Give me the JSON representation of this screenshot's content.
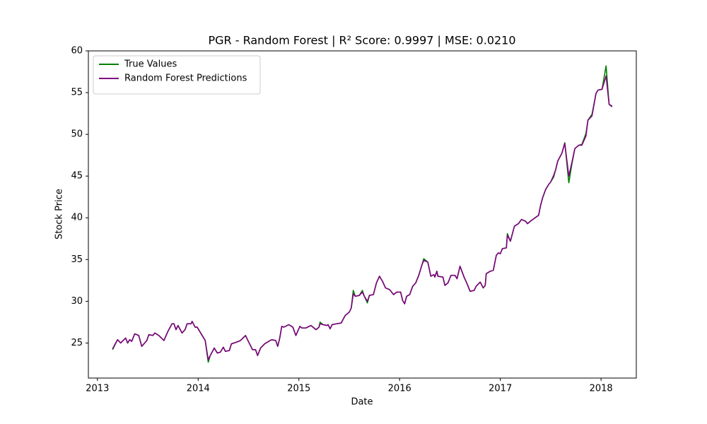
{
  "chart_data": {
    "type": "line",
    "title": "PGR - Random Forest | R² Score: 0.9997 | MSE: 0.0210",
    "xlabel": "Date",
    "ylabel": "Stock Price",
    "xlim": [
      2012.91,
      2018.35
    ],
    "xticks": [
      2013,
      2014,
      2015,
      2016,
      2017,
      2018
    ],
    "ylim": [
      20.8,
      60
    ],
    "yticks": [
      25,
      30,
      35,
      40,
      45,
      50,
      55,
      60
    ],
    "grid": false,
    "legend": "upper left",
    "x": [
      2013.15,
      2013.2,
      2013.23,
      2013.28,
      2013.3,
      2013.32,
      2013.34,
      2013.37,
      2013.41,
      2013.44,
      2013.49,
      2013.51,
      2013.55,
      2013.57,
      2013.61,
      2013.66,
      2013.7,
      2013.74,
      2013.76,
      2013.78,
      2013.8,
      2013.84,
      2013.87,
      2013.89,
      2013.93,
      2013.94,
      2013.97,
      2013.99,
      2014.02,
      2014.07,
      2014.1,
      2014.12,
      2014.16,
      2014.19,
      2014.22,
      2014.25,
      2014.27,
      2014.31,
      2014.33,
      2014.38,
      2014.42,
      2014.47,
      2014.49,
      2014.54,
      2014.57,
      2014.59,
      2014.62,
      2014.66,
      2014.7,
      2014.73,
      2014.77,
      2014.79,
      2014.81,
      2014.83,
      2014.85,
      2014.9,
      2014.94,
      2014.97,
      2015.01,
      2015.03,
      2015.07,
      2015.12,
      2015.17,
      2015.2,
      2015.21,
      2015.24,
      2015.28,
      2015.29,
      2015.31,
      2015.33,
      2015.37,
      2015.42,
      2015.46,
      2015.5,
      2015.52,
      2015.54,
      2015.56,
      2015.6,
      2015.63,
      2015.65,
      2015.68,
      2015.7,
      2015.74,
      2015.77,
      2015.8,
      2015.83,
      2015.86,
      2015.9,
      2015.94,
      2015.97,
      2016.01,
      2016.03,
      2016.05,
      2016.07,
      2016.1,
      2016.13,
      2016.16,
      2016.19,
      2016.22,
      2016.24,
      2016.28,
      2016.31,
      2016.34,
      2016.35,
      2016.37,
      2016.38,
      2016.43,
      2016.45,
      2016.48,
      2016.51,
      2016.55,
      2016.57,
      2016.6,
      2016.64,
      2016.67,
      2016.7,
      2016.74,
      2016.76,
      2016.8,
      2016.83,
      2016.85,
      2016.86,
      2016.9,
      2016.93,
      2016.96,
      2016.98,
      2017.0,
      2017.02,
      2017.06,
      2017.07,
      2017.1,
      2017.14,
      2017.18,
      2017.21,
      2017.25,
      2017.27,
      2017.31,
      2017.38,
      2017.4,
      2017.42,
      2017.45,
      2017.48,
      2017.5,
      2017.53,
      2017.55,
      2017.57,
      2017.61,
      2017.64,
      2017.68,
      2017.71,
      2017.74,
      2017.78,
      2017.81,
      2017.85,
      2017.87,
      2017.91,
      2017.95,
      2017.97,
      2018.01,
      2018.05,
      2018.08,
      2018.11
    ],
    "series": [
      {
        "name": "True Values",
        "color": "#008000",
        "values": [
          24.2,
          25.4,
          25.0,
          25.6,
          25.0,
          25.4,
          25.2,
          26.1,
          25.9,
          24.6,
          25.3,
          26.0,
          25.9,
          26.2,
          25.9,
          25.3,
          26.4,
          27.3,
          27.3,
          26.6,
          27.1,
          26.2,
          26.6,
          27.3,
          27.3,
          27.6,
          26.9,
          26.9,
          26.3,
          25.3,
          22.7,
          23.5,
          24.4,
          23.8,
          23.9,
          24.5,
          24.0,
          24.1,
          24.9,
          25.1,
          25.3,
          25.9,
          25.4,
          24.2,
          24.2,
          23.5,
          24.4,
          24.9,
          25.2,
          25.4,
          25.3,
          24.6,
          25.6,
          27.0,
          26.9,
          27.2,
          26.9,
          25.9,
          27.0,
          26.8,
          26.8,
          27.1,
          26.6,
          26.9,
          27.5,
          27.2,
          27.1,
          27.2,
          26.7,
          27.2,
          27.3,
          27.4,
          28.3,
          28.7,
          29.2,
          31.3,
          30.6,
          30.7,
          31.3,
          30.6,
          29.8,
          30.7,
          30.8,
          32.2,
          33.0,
          32.4,
          31.6,
          31.4,
          30.8,
          31.1,
          31.1,
          30.1,
          29.7,
          30.6,
          30.8,
          31.8,
          32.2,
          33.1,
          34.3,
          35.1,
          34.7,
          33.0,
          33.2,
          32.9,
          33.6,
          33.0,
          32.9,
          31.9,
          32.2,
          33.1,
          33.1,
          32.7,
          34.2,
          32.9,
          32.1,
          31.2,
          31.3,
          31.8,
          32.3,
          31.6,
          31.9,
          33.3,
          33.6,
          33.7,
          35.5,
          35.8,
          35.7,
          36.3,
          36.4,
          38.1,
          37.2,
          39.0,
          39.3,
          39.8,
          39.6,
          39.3,
          39.7,
          40.3,
          41.5,
          42.4,
          43.4,
          44.0,
          44.3,
          44.9,
          45.8,
          46.8,
          47.7,
          49.0,
          44.2,
          46.4,
          48.3,
          48.7,
          48.8,
          50.1,
          51.7,
          52.4,
          54.9,
          55.3,
          55.4,
          58.2,
          53.6,
          53.4
        ]
      },
      {
        "name": "Random Forest Predictions",
        "color": "#800080",
        "values": [
          24.3,
          25.4,
          25.0,
          25.6,
          25.0,
          25.4,
          25.2,
          26.1,
          25.9,
          24.6,
          25.3,
          26.0,
          25.9,
          26.2,
          25.9,
          25.3,
          26.4,
          27.3,
          27.3,
          26.6,
          27.1,
          26.2,
          26.6,
          27.3,
          27.3,
          27.6,
          26.9,
          26.9,
          26.3,
          25.3,
          23.0,
          23.5,
          24.4,
          23.8,
          23.9,
          24.5,
          24.0,
          24.1,
          24.9,
          25.1,
          25.3,
          25.9,
          25.4,
          24.2,
          24.2,
          23.5,
          24.4,
          24.9,
          25.2,
          25.4,
          25.3,
          24.6,
          25.6,
          27.0,
          26.9,
          27.2,
          26.9,
          25.9,
          27.0,
          26.8,
          26.8,
          27.1,
          26.6,
          26.9,
          27.3,
          27.2,
          27.1,
          27.2,
          26.7,
          27.2,
          27.3,
          27.4,
          28.3,
          28.7,
          29.2,
          30.9,
          30.6,
          30.7,
          31.1,
          30.6,
          30.0,
          30.7,
          30.8,
          32.2,
          33.0,
          32.4,
          31.6,
          31.4,
          30.8,
          31.1,
          31.1,
          30.1,
          29.7,
          30.6,
          30.8,
          31.8,
          32.2,
          33.1,
          34.3,
          34.9,
          34.7,
          33.0,
          33.2,
          32.9,
          33.6,
          33.0,
          32.9,
          31.9,
          32.2,
          33.1,
          33.1,
          32.7,
          34.2,
          32.9,
          32.1,
          31.2,
          31.3,
          31.8,
          32.3,
          31.6,
          31.9,
          33.3,
          33.6,
          33.7,
          35.5,
          35.8,
          35.7,
          36.3,
          36.4,
          37.9,
          37.2,
          39.0,
          39.3,
          39.8,
          39.6,
          39.3,
          39.7,
          40.3,
          41.5,
          42.4,
          43.4,
          44.0,
          44.3,
          45.1,
          45.8,
          46.8,
          47.7,
          48.9,
          45.0,
          46.6,
          48.3,
          48.7,
          48.7,
          49.8,
          51.7,
          52.2,
          54.9,
          55.3,
          55.4,
          57.0,
          53.6,
          53.3
        ]
      }
    ]
  }
}
